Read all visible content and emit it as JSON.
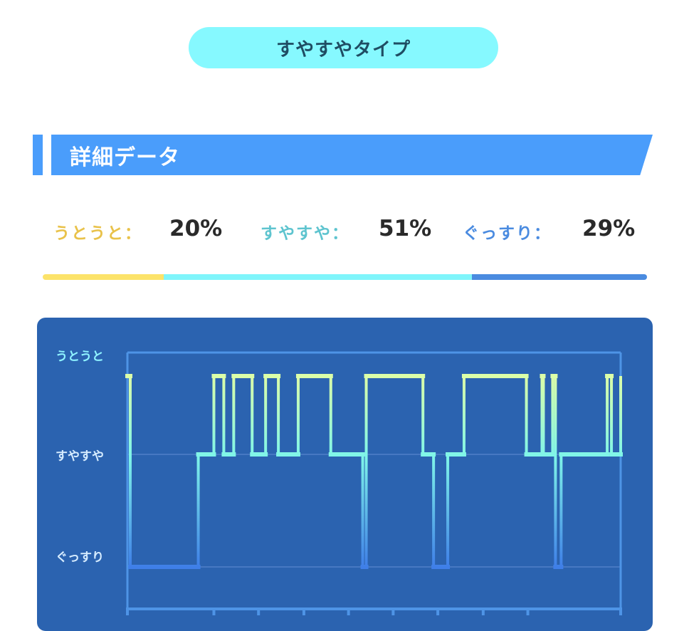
{
  "header": {
    "type_name": "すやすやタイプ"
  },
  "section": {
    "title": "詳細データ"
  },
  "stats": [
    {
      "label": "うとうと：",
      "value": "20%",
      "percent": 20,
      "color": "#e9c24a",
      "bar_color": "#fce36a"
    },
    {
      "label": "すやすや：",
      "value": "51%",
      "percent": 51,
      "color": "#5ec4cf",
      "bar_color": "#7ff5fb"
    },
    {
      "label": "ぐっすり：",
      "value": "29%",
      "percent": 29,
      "color": "#4a8be0",
      "bar_color": "#4a8be0"
    }
  ],
  "chart_data": {
    "type": "line",
    "step": true,
    "levels": [
      "うとうと",
      "すやすや",
      "ぐっすり"
    ],
    "ylim": [
      0,
      2
    ],
    "xlim": [
      0,
      696
    ],
    "tick_positions": [
      0,
      122,
      185,
      249,
      312,
      375,
      438,
      502,
      565,
      696
    ],
    "grid": true,
    "colors": {
      "light": "#dcffa8",
      "mid": "#7ff5e9",
      "deep": "#3f7fe8",
      "axis": "#4e94e6",
      "grid": "#4778c2"
    },
    "x": [
      0,
      4,
      100,
      122,
      136,
      150,
      176,
      195,
      213,
      241,
      287,
      332,
      337,
      417,
      432,
      452,
      475,
      563,
      585,
      587,
      600,
      604,
      612,
      638,
      677,
      683,
      696
    ],
    "y": [
      0,
      2,
      1,
      0,
      1,
      0,
      1,
      0,
      1,
      0,
      1,
      2,
      0,
      1,
      2,
      1,
      0,
      1,
      0,
      1,
      0,
      2,
      1,
      1,
      0,
      1,
      0
    ]
  }
}
